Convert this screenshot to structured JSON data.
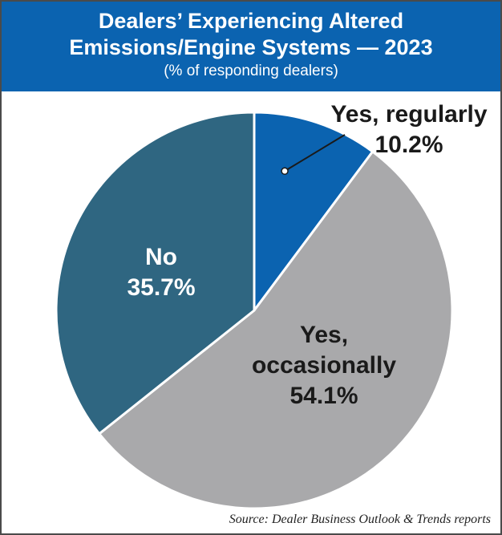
{
  "header": {
    "title_line1": "Dealers’ Experiencing Altered",
    "title_line2": "Emissions/Engine Systems — 2023",
    "subtitle": "(% of responding dealers)"
  },
  "source": "Source: Dealer Business Outlook & Trends reports",
  "chart_data": {
    "type": "pie",
    "title": "Dealers’ Experiencing Altered Emissions/Engine Systems — 2023",
    "subtitle": "(% of responding dealers)",
    "slices": [
      {
        "label_lines": [
          "Yes, regularly"
        ],
        "value": 10.2,
        "display": "10.2%",
        "color": "#0b63b0",
        "label_color": "#1a1a1a"
      },
      {
        "label_lines": [
          "Yes,",
          "occasionally"
        ],
        "value": 54.1,
        "display": "54.1%",
        "color": "#a9a9ab",
        "label_color": "#1a1a1a"
      },
      {
        "label_lines": [
          "No"
        ],
        "value": 35.7,
        "display": "35.7%",
        "color": "#2f6681",
        "label_color": "#ffffff"
      }
    ],
    "start_angle": "12 o'clock",
    "direction": "clockwise",
    "legend": "none"
  },
  "colors": {
    "header_bg": "#0b63b0",
    "border": "#4a4a4a",
    "slice_stroke": "#ffffff"
  }
}
